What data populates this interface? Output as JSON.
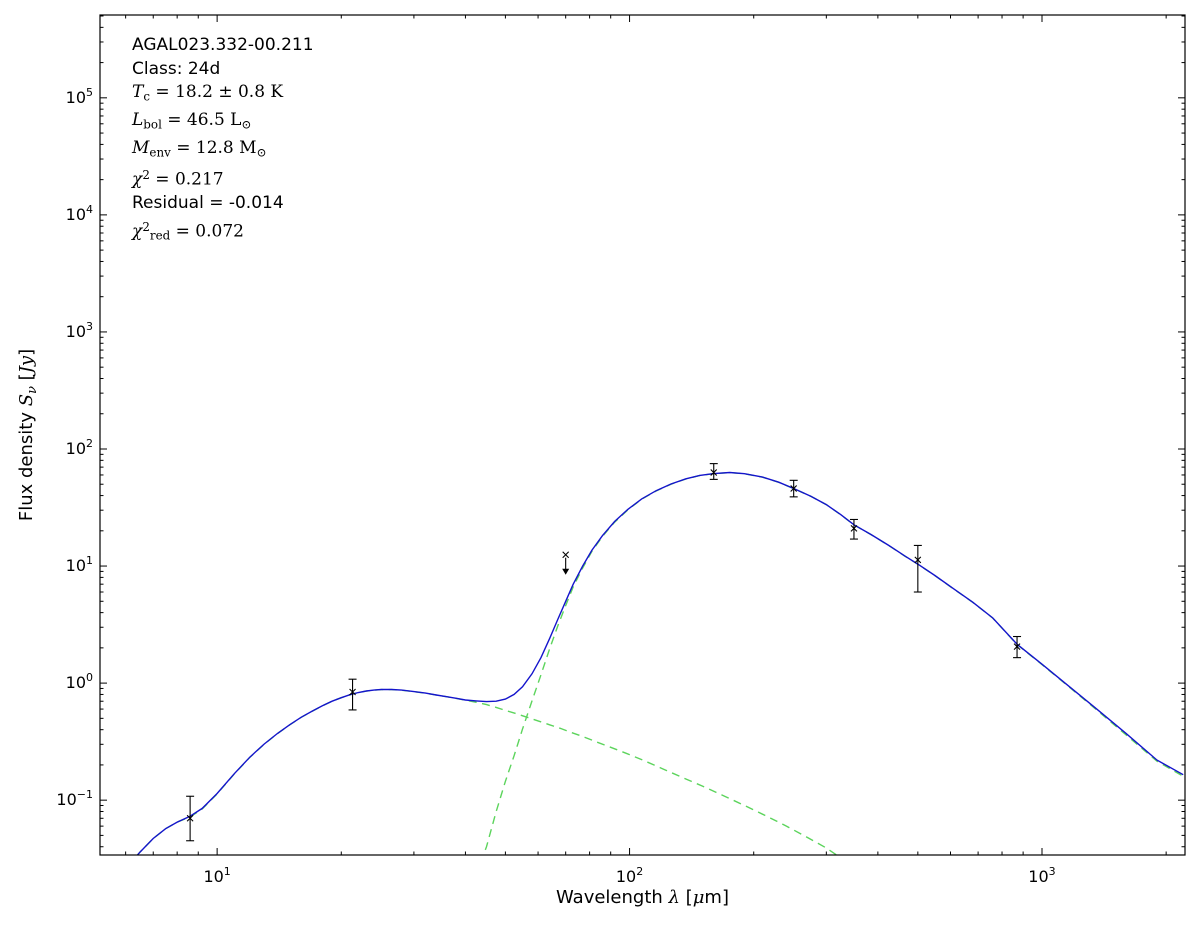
{
  "chart_data": {
    "type": "line",
    "title": "",
    "xlabel": "Wavelength λ [μm]",
    "ylabel": "Flux density Sν [Jy]",
    "x_axis": {
      "scale": "log",
      "min": 5.2,
      "max": 2222,
      "major_ticks": [
        10,
        100,
        1000
      ],
      "major_tick_exponents": [
        1,
        2,
        3
      ],
      "label_segments": [
        {
          "t": "Wavelength "
        },
        {
          "t": "λ",
          "i": true
        },
        {
          "t": " ["
        },
        {
          "t": "μ",
          "i": true
        },
        {
          "t": "m]"
        }
      ]
    },
    "y_axis": {
      "scale": "log",
      "min": 0.034,
      "max": 510000,
      "major_ticks": [
        0.1,
        1,
        10,
        100,
        1000,
        10000,
        100000
      ],
      "major_tick_exponents": [
        -1,
        0,
        1,
        2,
        3,
        4,
        5
      ],
      "label_segments": [
        {
          "t": "Flux density "
        },
        {
          "t": "S",
          "i": true
        },
        {
          "t": "ν",
          "i": true,
          "sub": true
        },
        {
          "t": " ["
        },
        {
          "t": "Jy",
          "i": true
        },
        {
          "t": "]"
        }
      ]
    },
    "grid": false,
    "legend": "none",
    "colors": {
      "total_model": "#1414cc",
      "components": "#5cd45c",
      "data_points": "#000000",
      "axes": "#000000"
    },
    "series": [
      {
        "name": "model-total",
        "style": "solid",
        "color_key": "total_model",
        "points": [
          [
            5,
            0.012
          ],
          [
            5.5,
            0.018
          ],
          [
            6,
            0.026
          ],
          [
            6.5,
            0.036
          ],
          [
            7,
            0.047
          ],
          [
            7.5,
            0.057
          ],
          [
            8,
            0.065
          ],
          [
            8.6,
            0.073
          ],
          [
            9.2,
            0.085
          ],
          [
            10,
            0.114
          ],
          [
            11,
            0.168
          ],
          [
            12,
            0.233
          ],
          [
            13,
            0.301
          ],
          [
            14,
            0.371
          ],
          [
            15,
            0.441
          ],
          [
            16,
            0.511
          ],
          [
            17,
            0.576
          ],
          [
            18,
            0.641
          ],
          [
            19,
            0.701
          ],
          [
            20,
            0.751
          ],
          [
            21,
            0.796
          ],
          [
            22,
            0.831
          ],
          [
            23,
            0.856
          ],
          [
            24,
            0.871
          ],
          [
            25,
            0.881
          ],
          [
            26.5,
            0.881
          ],
          [
            28,
            0.871
          ],
          [
            30,
            0.846
          ],
          [
            32,
            0.821
          ],
          [
            34,
            0.791
          ],
          [
            36,
            0.766
          ],
          [
            38,
            0.741
          ],
          [
            40,
            0.717
          ],
          [
            42.5,
            0.705
          ],
          [
            45,
            0.695
          ],
          [
            47.5,
            0.7
          ],
          [
            50,
            0.73
          ],
          [
            52.5,
            0.8
          ],
          [
            55,
            0.93
          ],
          [
            58,
            1.2
          ],
          [
            61,
            1.65
          ],
          [
            64,
            2.4
          ],
          [
            67,
            3.5
          ],
          [
            70,
            5.0
          ],
          [
            73,
            7.0
          ],
          [
            77,
            10.0
          ],
          [
            81,
            13.6
          ],
          [
            86,
            18.2
          ],
          [
            92,
            24.0
          ],
          [
            99,
            30.5
          ],
          [
            107,
            37.5
          ],
          [
            116,
            44.0
          ],
          [
            126,
            50.2
          ],
          [
            137,
            55.6
          ],
          [
            148,
            59.5
          ],
          [
            160,
            61.6
          ],
          [
            175,
            63.0
          ],
          [
            190,
            61.5
          ],
          [
            210,
            57.5
          ],
          [
            230,
            52.0
          ],
          [
            250,
            46.0
          ],
          [
            275,
            39.5
          ],
          [
            300,
            33.5
          ],
          [
            325,
            27.5
          ],
          [
            350,
            22.5
          ],
          [
            385,
            18.6
          ],
          [
            425,
            15.0
          ],
          [
            465,
            12.2
          ],
          [
            500,
            10.4
          ],
          [
            550,
            8.3
          ],
          [
            610,
            6.4
          ],
          [
            680,
            4.9
          ],
          [
            760,
            3.6
          ],
          [
            870,
            2.15
          ],
          [
            1000,
            1.45
          ],
          [
            1150,
            0.97
          ],
          [
            1350,
            0.61
          ],
          [
            1600,
            0.37
          ],
          [
            1900,
            0.22
          ],
          [
            2200,
            0.165
          ]
        ]
      },
      {
        "name": "warm-component",
        "style": "dashed",
        "color_key": "components",
        "points": [
          [
            5,
            0.012
          ],
          [
            5.5,
            0.018
          ],
          [
            6,
            0.026
          ],
          [
            6.5,
            0.036
          ],
          [
            7,
            0.047
          ],
          [
            7.5,
            0.057
          ],
          [
            8,
            0.065
          ],
          [
            8.6,
            0.072
          ],
          [
            9.2,
            0.084
          ],
          [
            10,
            0.113
          ],
          [
            11,
            0.167
          ],
          [
            12,
            0.232
          ],
          [
            13,
            0.3
          ],
          [
            14,
            0.37
          ],
          [
            15,
            0.44
          ],
          [
            16,
            0.51
          ],
          [
            17,
            0.575
          ],
          [
            18,
            0.64
          ],
          [
            19,
            0.7
          ],
          [
            20,
            0.75
          ],
          [
            21,
            0.795
          ],
          [
            22,
            0.83
          ],
          [
            23,
            0.855
          ],
          [
            24,
            0.87
          ],
          [
            25,
            0.88
          ],
          [
            26.5,
            0.88
          ],
          [
            28,
            0.87
          ],
          [
            30,
            0.845
          ],
          [
            32,
            0.82
          ],
          [
            34,
            0.79
          ],
          [
            36,
            0.765
          ],
          [
            38,
            0.74
          ],
          [
            40,
            0.715
          ],
          [
            42.5,
            0.685
          ],
          [
            45,
            0.655
          ],
          [
            47.5,
            0.62
          ],
          [
            50,
            0.585
          ],
          [
            53,
            0.55
          ],
          [
            56,
            0.515
          ],
          [
            60,
            0.475
          ],
          [
            64,
            0.44
          ],
          [
            68,
            0.41
          ],
          [
            72,
            0.38
          ],
          [
            77,
            0.35
          ],
          [
            83,
            0.315
          ],
          [
            90,
            0.283
          ],
          [
            98,
            0.252
          ],
          [
            107,
            0.222
          ],
          [
            120,
            0.186
          ],
          [
            135,
            0.155
          ],
          [
            150,
            0.132
          ],
          [
            170,
            0.108
          ],
          [
            190,
            0.09
          ],
          [
            215,
            0.073
          ],
          [
            240,
            0.06
          ],
          [
            270,
            0.048
          ],
          [
            300,
            0.039
          ],
          [
            335,
            0.03
          ]
        ]
      },
      {
        "name": "cold-component",
        "style": "dashed",
        "color_key": "components",
        "points": [
          [
            41,
            0.018
          ],
          [
            43,
            0.026
          ],
          [
            45,
            0.04
          ],
          [
            47.5,
            0.08
          ],
          [
            50,
            0.145
          ],
          [
            52.5,
            0.24
          ],
          [
            55,
            0.405
          ],
          [
            58,
            0.705
          ],
          [
            61,
            1.18
          ],
          [
            64,
            1.96
          ],
          [
            67,
            3.08
          ],
          [
            70,
            4.6
          ],
          [
            73,
            6.63
          ],
          [
            77,
            9.65
          ],
          [
            81,
            13.3
          ],
          [
            86,
            17.9
          ],
          [
            92,
            23.7
          ],
          [
            99,
            30.2
          ],
          [
            107,
            37.3
          ],
          [
            116,
            43.8
          ],
          [
            126,
            50.0
          ],
          [
            137,
            55.4
          ],
          [
            148,
            59.4
          ],
          [
            160,
            61.5
          ],
          [
            175,
            62.9
          ],
          [
            190,
            61.4
          ],
          [
            210,
            57.4
          ],
          [
            230,
            51.9
          ],
          [
            250,
            45.9
          ],
          [
            275,
            39.45
          ],
          [
            300,
            33.46
          ],
          [
            325,
            27.46
          ],
          [
            350,
            22.46
          ],
          [
            385,
            18.56
          ],
          [
            425,
            14.97
          ],
          [
            465,
            12.17
          ],
          [
            500,
            10.37
          ],
          [
            550,
            8.28
          ],
          [
            610,
            6.38
          ],
          [
            680,
            4.89
          ],
          [
            760,
            3.59
          ],
          [
            870,
            2.14
          ],
          [
            1000,
            1.44
          ],
          [
            1150,
            0.96
          ],
          [
            1350,
            0.6
          ],
          [
            1600,
            0.36
          ],
          [
            1900,
            0.215
          ],
          [
            2200,
            0.16
          ]
        ]
      }
    ],
    "observations": {
      "marker": "x",
      "points": [
        {
          "wavelength_um": 8.6,
          "flux_jy": 0.07,
          "err_lo": 0.025,
          "err_hi": 0.038
        },
        {
          "wavelength_um": 21.3,
          "flux_jy": 0.84,
          "err_lo": 0.25,
          "err_hi": 0.24
        },
        {
          "wavelength_um": 70,
          "flux_jy": 12.5,
          "upper_limit": true
        },
        {
          "wavelength_um": 160,
          "flux_jy": 63,
          "err_lo": 8,
          "err_hi": 12
        },
        {
          "wavelength_um": 250,
          "flux_jy": 46,
          "err_lo": 7,
          "err_hi": 8
        },
        {
          "wavelength_um": 350,
          "flux_jy": 21,
          "err_lo": 4,
          "err_hi": 4
        },
        {
          "wavelength_um": 500,
          "flux_jy": 11.3,
          "err_lo": 5.3,
          "err_hi": 3.7
        },
        {
          "wavelength_um": 870,
          "flux_jy": 2.05,
          "err_lo": 0.4,
          "err_hi": 0.45
        }
      ]
    },
    "annotation_lines": [
      {
        "name": "source-name",
        "math": false,
        "segments": [
          {
            "t": "AGAL023.332-00.211"
          }
        ]
      },
      {
        "name": "class-label",
        "math": false,
        "segments": [
          {
            "t": "Class: 24d"
          }
        ]
      },
      {
        "name": "dust-temperature",
        "math": true,
        "segments": [
          {
            "t": "T",
            "i": true
          },
          {
            "t": "c",
            "sub": true
          },
          {
            "t": " = 18.2 ± 0.8 K"
          }
        ]
      },
      {
        "name": "bolometric-luminosity",
        "math": true,
        "segments": [
          {
            "t": "L",
            "i": true
          },
          {
            "t": "bol",
            "sub": true
          },
          {
            "t": " = 46.5 L"
          },
          {
            "t": "⊙",
            "sub": true
          }
        ]
      },
      {
        "name": "envelope-mass",
        "math": true,
        "segments": [
          {
            "t": "M",
            "i": true
          },
          {
            "t": "env",
            "sub": true
          },
          {
            "t": " = 12.8 M"
          },
          {
            "t": "⊙",
            "sub": true
          }
        ]
      },
      {
        "name": "chi-squared",
        "math": true,
        "segments": [
          {
            "t": "χ",
            "i": true
          },
          {
            "t": "2",
            "sup": true
          },
          {
            "t": " = 0.217"
          }
        ]
      },
      {
        "name": "residual",
        "math": false,
        "segments": [
          {
            "t": "Residual = -0.014"
          }
        ]
      },
      {
        "name": "chi-squared-reduced",
        "math": true,
        "segments": [
          {
            "t": "χ",
            "i": true
          },
          {
            "t": "2",
            "sup": true
          },
          {
            "t": "red",
            "sub": true
          },
          {
            "t": " = 0.072"
          }
        ]
      }
    ]
  }
}
